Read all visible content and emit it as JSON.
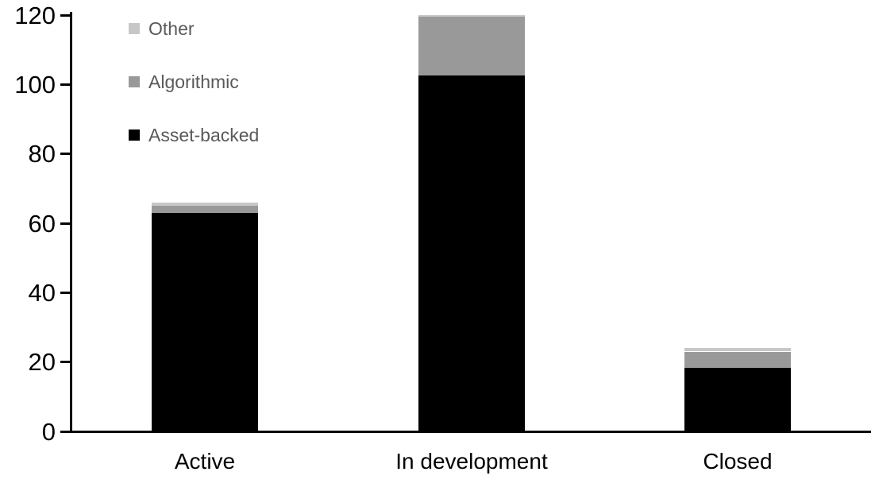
{
  "chart_data": {
    "type": "bar",
    "stacked": true,
    "title": "",
    "xlabel": "",
    "ylabel": "",
    "categories": [
      "Active",
      "In development",
      "Closed"
    ],
    "series": [
      {
        "name": "Asset-backed",
        "color": "#000000",
        "values": [
          63,
          102.5,
          18.5
        ]
      },
      {
        "name": "Algorithmic",
        "color": "#999999",
        "values": [
          2,
          17,
          4.5
        ]
      },
      {
        "name": "Other",
        "color": "#c7c7c7",
        "values": [
          1,
          0.5,
          1
        ]
      }
    ],
    "totals": [
      66,
      120,
      24
    ],
    "ylim": [
      0,
      120
    ],
    "yticks": [
      0,
      20,
      40,
      60,
      80,
      100,
      120
    ],
    "grid": false,
    "legend": {
      "position": "top-left",
      "display_order_top_to_bottom": [
        "Other",
        "Algorithmic",
        "Asset-backed"
      ],
      "text_color": "#595959"
    },
    "axis_color": "#000000",
    "tick_label_color": "#000000",
    "category_label_color": "#000000"
  }
}
